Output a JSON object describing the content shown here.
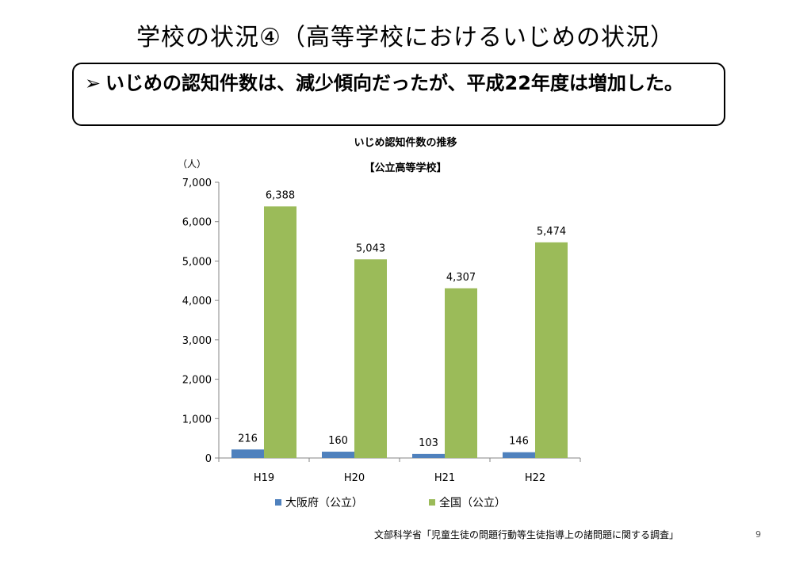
{
  "slide": {
    "title": "学校の状況④（高等学校におけるいじめの状況）",
    "callout_arrow": "➢",
    "callout_text": "いじめの認知件数は、減少傾向だったが、平成22年度は増加した。",
    "source": "文部科学省「児童生徒の問題行動等生徒指導上の諸問題に関する調査」",
    "page_number": "9"
  },
  "chart_data": {
    "type": "bar",
    "title": "いじめ認知件数の推移",
    "subtitle": "【公立高等学校】",
    "unit_label": "（人）",
    "categories": [
      "H19",
      "H20",
      "H21",
      "H22"
    ],
    "series": [
      {
        "name": "大阪府（公立）",
        "color": "#4F81BD",
        "values": [
          216,
          160,
          103,
          146
        ]
      },
      {
        "name": "全国（公立）",
        "color": "#9BBB59",
        "values": [
          6388,
          5043,
          4307,
          5474
        ]
      }
    ],
    "ylim": [
      0,
      7000
    ],
    "yticks": [
      0,
      1000,
      2000,
      3000,
      4000,
      5000,
      6000,
      7000
    ],
    "ytick_labels": [
      "0",
      "1,000",
      "2,000",
      "3,000",
      "4,000",
      "5,000",
      "6,000",
      "7,000"
    ],
    "data_labels": [
      [
        "216",
        "160",
        "103",
        "146"
      ],
      [
        "6,388",
        "5,043",
        "4,307",
        "5,474"
      ]
    ],
    "grid": false,
    "legend_position": "bottom"
  }
}
